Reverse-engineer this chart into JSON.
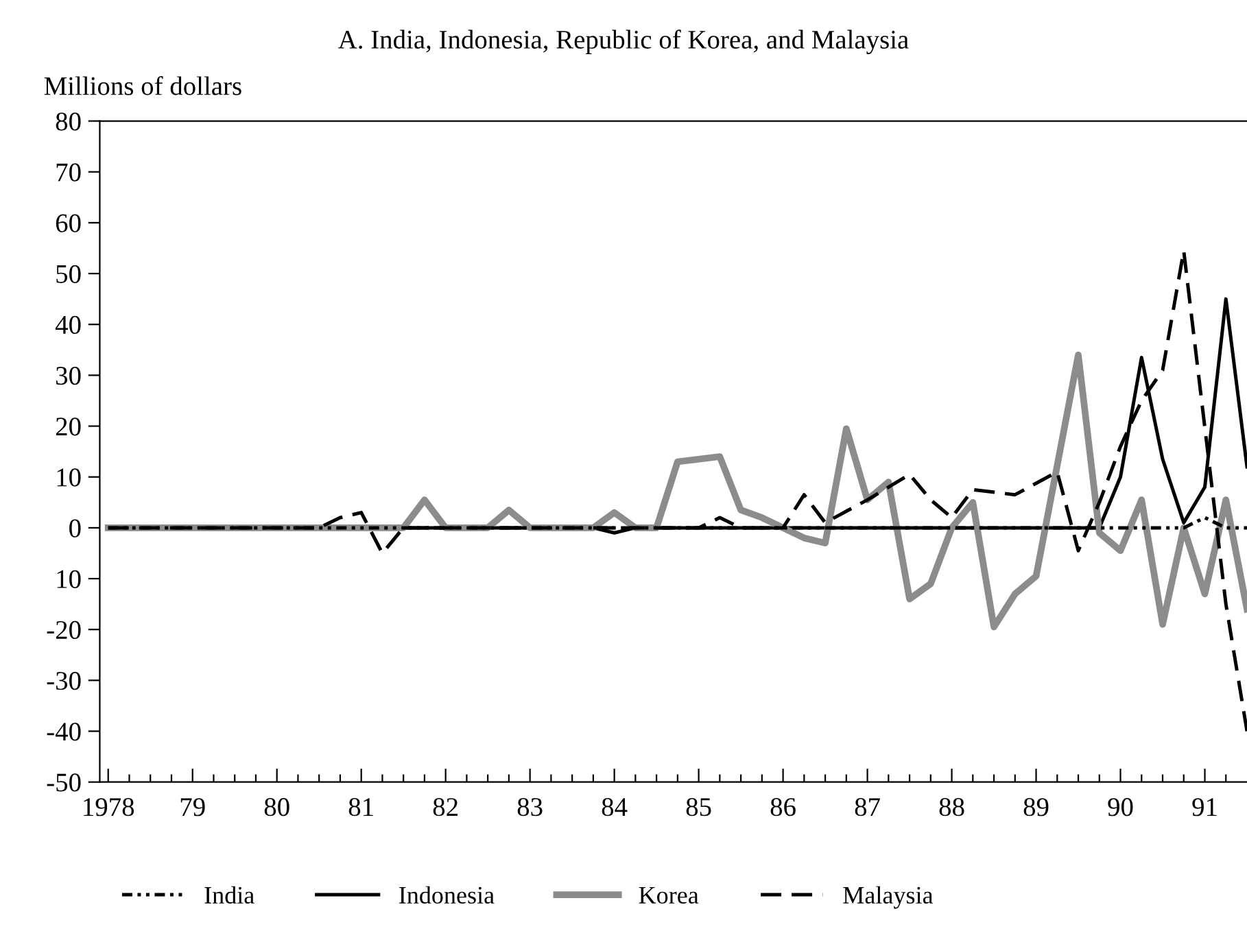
{
  "chart_data": {
    "type": "line",
    "title": "A. India, Indonesia, Republic of Korea, and Malaysia",
    "ylabel": "Millions of dollars",
    "xlim": [
      1977.9,
      1991.5
    ],
    "ylim": [
      -50,
      80
    ],
    "xticks": [
      {
        "value": 1978,
        "label": "1978"
      },
      {
        "value": 1978.25,
        "label": null
      },
      {
        "value": 1978.5,
        "label": null
      },
      {
        "value": 1978.75,
        "label": null
      },
      {
        "value": 1979,
        "label": "79"
      },
      {
        "value": 1979.25,
        "label": null
      },
      {
        "value": 1979.5,
        "label": null
      },
      {
        "value": 1979.75,
        "label": null
      },
      {
        "value": 1980,
        "label": "80"
      },
      {
        "value": 1980.25,
        "label": null
      },
      {
        "value": 1980.5,
        "label": null
      },
      {
        "value": 1980.75,
        "label": null
      },
      {
        "value": 1981,
        "label": "81"
      },
      {
        "value": 1981.25,
        "label": null
      },
      {
        "value": 1981.5,
        "label": null
      },
      {
        "value": 1981.75,
        "label": null
      },
      {
        "value": 1982,
        "label": "82"
      },
      {
        "value": 1982.25,
        "label": null
      },
      {
        "value": 1982.5,
        "label": null
      },
      {
        "value": 1982.75,
        "label": null
      },
      {
        "value": 1983,
        "label": "83"
      },
      {
        "value": 1983.25,
        "label": null
      },
      {
        "value": 1983.5,
        "label": null
      },
      {
        "value": 1983.75,
        "label": null
      },
      {
        "value": 1984,
        "label": "84"
      },
      {
        "value": 1984.25,
        "label": null
      },
      {
        "value": 1984.5,
        "label": null
      },
      {
        "value": 1984.75,
        "label": null
      },
      {
        "value": 1985,
        "label": "85"
      },
      {
        "value": 1985.25,
        "label": null
      },
      {
        "value": 1985.5,
        "label": null
      },
      {
        "value": 1985.75,
        "label": null
      },
      {
        "value": 1986,
        "label": "86"
      },
      {
        "value": 1986.25,
        "label": null
      },
      {
        "value": 1986.5,
        "label": null
      },
      {
        "value": 1986.75,
        "label": null
      },
      {
        "value": 1987,
        "label": "87"
      },
      {
        "value": 1987.25,
        "label": null
      },
      {
        "value": 1987.5,
        "label": null
      },
      {
        "value": 1987.75,
        "label": null
      },
      {
        "value": 1988,
        "label": "88"
      },
      {
        "value": 1988.25,
        "label": null
      },
      {
        "value": 1988.5,
        "label": null
      },
      {
        "value": 1988.75,
        "label": null
      },
      {
        "value": 1989,
        "label": "89"
      },
      {
        "value": 1989.25,
        "label": null
      },
      {
        "value": 1989.5,
        "label": null
      },
      {
        "value": 1989.75,
        "label": null
      },
      {
        "value": 1990,
        "label": "90"
      },
      {
        "value": 1990.25,
        "label": null
      },
      {
        "value": 1990.5,
        "label": null
      },
      {
        "value": 1990.75,
        "label": null
      },
      {
        "value": 1991,
        "label": "91"
      },
      {
        "value": 1991.25,
        "label": null
      }
    ],
    "yticks": [
      -50,
      -40,
      -30,
      -20,
      {
        "value": -10,
        "label": "10"
      },
      0,
      10,
      20,
      30,
      40,
      50,
      60,
      70,
      80
    ],
    "legend": "bottom",
    "grid": false,
    "series": [
      {
        "name": "India",
        "color": "#000000",
        "line_style": "dotted",
        "x": [
          1978,
          1990.5,
          1990.75,
          1991.0,
          1991.25,
          1991.5
        ],
        "values": [
          0,
          0,
          0,
          2,
          0,
          0
        ]
      },
      {
        "name": "Indonesia",
        "color": "#000000",
        "line_style": "solid",
        "x": [
          1978,
          1983.75,
          1984.0,
          1984.25,
          1989.75,
          1990.0,
          1990.25,
          1990.5,
          1990.75,
          1991.0,
          1991.25,
          1991.5
        ],
        "values": [
          0,
          0,
          -1,
          0,
          0,
          10,
          33.5,
          13.5,
          1,
          8,
          45,
          12
        ]
      },
      {
        "name": "Korea",
        "color": "#8c8c8c",
        "line_style": "solid",
        "x": [
          1978,
          1981.5,
          1981.75,
          1982.0,
          1982.5,
          1982.75,
          1983.0,
          1983.75,
          1984.0,
          1984.25,
          1984.5,
          1984.75,
          1985.25,
          1985.5,
          1985.75,
          1986.0,
          1986.25,
          1986.5,
          1986.75,
          1987.0,
          1987.25,
          1987.5,
          1987.75,
          1988.0,
          1988.25,
          1988.5,
          1988.75,
          1989.0,
          1989.5,
          1989.75,
          1990.0,
          1990.25,
          1990.5,
          1990.75,
          1991.0,
          1991.25,
          1991.5
        ],
        "values": [
          0,
          0,
          5.5,
          0,
          0,
          3.5,
          0,
          0,
          3,
          0,
          0,
          13,
          14,
          3.5,
          2,
          0,
          -2,
          -3,
          19.5,
          5.5,
          9,
          -14,
          -11,
          0,
          5,
          -19.5,
          -13,
          -9.5,
          34,
          -1,
          -4.5,
          5.5,
          -19,
          0,
          -13,
          5.5,
          -16
        ]
      },
      {
        "name": "Malaysia",
        "color": "#000000",
        "line_style": "dashed",
        "x": [
          1978,
          1980.5,
          1980.75,
          1981.0,
          1981.25,
          1981.5,
          1985.0,
          1985.25,
          1985.5,
          1986.0,
          1986.25,
          1986.5,
          1987.0,
          1987.5,
          1987.75,
          1988.0,
          1988.25,
          1988.75,
          1989.25,
          1989.5,
          1989.75,
          1990.0,
          1990.25,
          1990.5,
          1990.75,
          1991.25,
          1991.5
        ],
        "values": [
          0,
          0,
          2,
          3,
          -5,
          0,
          0,
          2,
          0,
          0,
          6.5,
          1,
          5.5,
          10.5,
          5.5,
          2,
          7.5,
          6.5,
          11,
          -4.5,
          5,
          16,
          25,
          31,
          54.5,
          -15,
          -40
        ]
      }
    ]
  }
}
